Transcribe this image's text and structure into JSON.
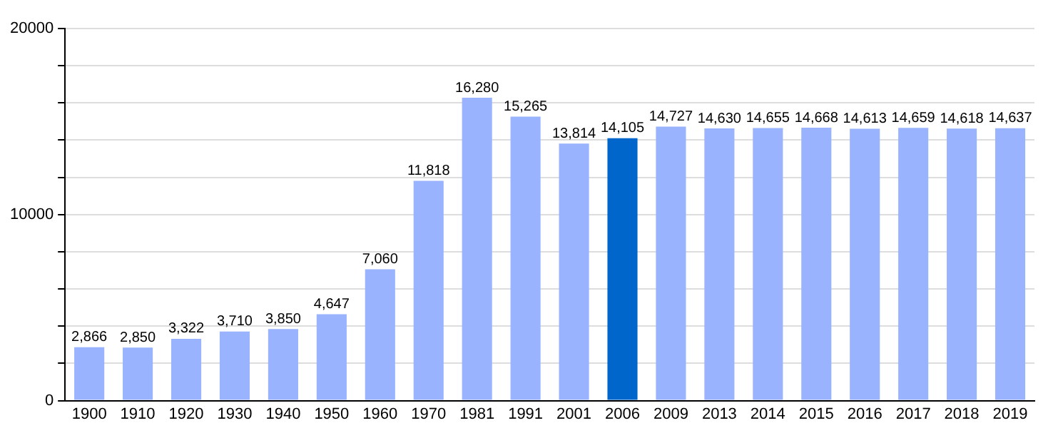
{
  "chart_data": {
    "type": "bar",
    "categories": [
      "1900",
      "1910",
      "1920",
      "1930",
      "1940",
      "1950",
      "1960",
      "1970",
      "1981",
      "1991",
      "2001",
      "2006",
      "2009",
      "2013",
      "2014",
      "2015",
      "2016",
      "2017",
      "2018",
      "2019"
    ],
    "values": [
      2866,
      2850,
      3322,
      3710,
      3850,
      4647,
      7060,
      11818,
      16280,
      15265,
      13814,
      14105,
      14727,
      14630,
      14655,
      14668,
      14613,
      14659,
      14618,
      14637
    ],
    "colors": [
      "#99b3ff",
      "#99b3ff",
      "#99b3ff",
      "#99b3ff",
      "#99b3ff",
      "#99b3ff",
      "#99b3ff",
      "#99b3ff",
      "#99b3ff",
      "#99b3ff",
      "#99b3ff",
      "#0066cc",
      "#99b3ff",
      "#99b3ff",
      "#99b3ff",
      "#99b3ff",
      "#99b3ff",
      "#99b3ff",
      "#99b3ff",
      "#99b3ff"
    ],
    "value_labels": [
      "2,866",
      "2,850",
      "3,322",
      "3,710",
      "3,850",
      "4,647",
      "7,060",
      "11,818",
      "16,280",
      "15,265",
      "13,814",
      "14,105",
      "14,727",
      "14,630",
      "14,655",
      "14,668",
      "14,613",
      "14,659",
      "14,618",
      "14,637"
    ],
    "ylim": [
      0,
      20000
    ],
    "yticks": [
      0,
      {
        "value": 2000,
        "label": null
      },
      {
        "value": 4000,
        "label": null
      },
      {
        "value": 6000,
        "label": null
      },
      {
        "value": 8000,
        "label": null
      },
      10000,
      {
        "value": 12000,
        "label": null
      },
      {
        "value": 14000,
        "label": null
      },
      {
        "value": 16000,
        "label": null
      },
      {
        "value": 18000,
        "label": null
      },
      20000
    ],
    "grid": "y"
  }
}
